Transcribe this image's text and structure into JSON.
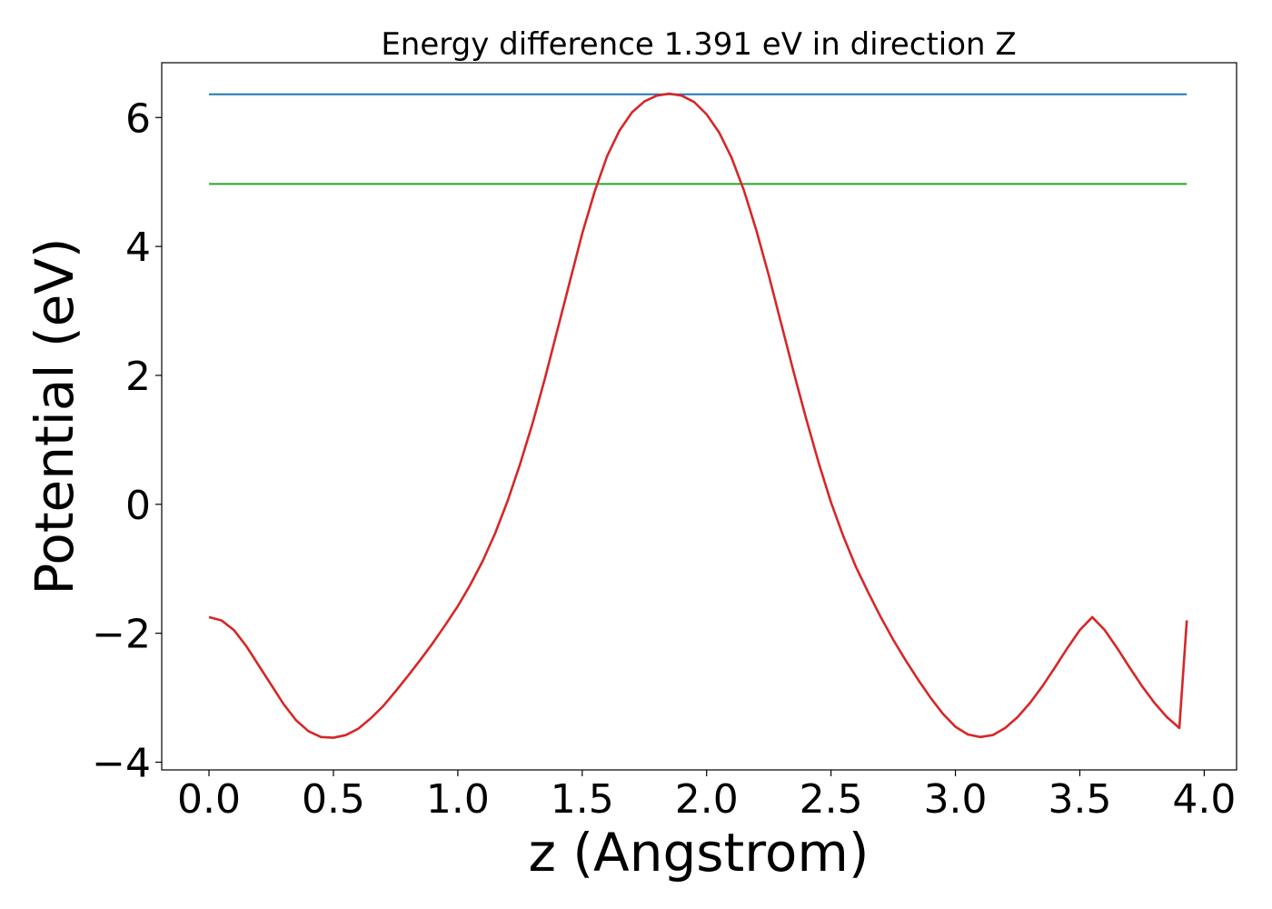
{
  "chart_data": {
    "type": "line",
    "title": "Energy difference 1.391 eV in direction Z",
    "xlabel": "z (Angstrom)",
    "ylabel": "Potential (eV)",
    "xlim": [
      -0.19,
      4.13
    ],
    "ylim": [
      -4.12,
      6.85
    ],
    "x_ticks": [
      0.0,
      0.5,
      1.0,
      1.5,
      2.0,
      2.5,
      3.0,
      3.5,
      4.0
    ],
    "x_tick_labels": [
      "0.0",
      "0.5",
      "1.0",
      "1.5",
      "2.0",
      "2.5",
      "3.0",
      "3.5",
      "4.0"
    ],
    "y_ticks": [
      -4,
      -2,
      0,
      2,
      4,
      6
    ],
    "y_tick_labels": [
      "−4",
      "−2",
      "0",
      "2",
      "4",
      "6"
    ],
    "grid": false,
    "series": [
      {
        "color": "#1f77b4",
        "x": [
          0.0,
          3.93
        ],
        "y": [
          6.36,
          6.36
        ]
      },
      {
        "color": "#2ca02c",
        "x": [
          0.0,
          3.93
        ],
        "y": [
          4.97,
          4.97
        ]
      },
      {
        "color": "#d62728",
        "x": [
          0.0,
          0.05,
          0.1,
          0.15,
          0.2,
          0.25,
          0.3,
          0.35,
          0.4,
          0.45,
          0.5,
          0.55,
          0.6,
          0.65,
          0.7,
          0.75,
          0.8,
          0.85,
          0.9,
          0.95,
          1.0,
          1.05,
          1.1,
          1.15,
          1.2,
          1.25,
          1.3,
          1.35,
          1.4,
          1.45,
          1.5,
          1.55,
          1.6,
          1.65,
          1.7,
          1.75,
          1.8,
          1.85,
          1.9,
          1.95,
          2.0,
          2.05,
          2.1,
          2.15,
          2.2,
          2.25,
          2.3,
          2.35,
          2.4,
          2.45,
          2.5,
          2.55,
          2.6,
          2.65,
          2.7,
          2.75,
          2.8,
          2.85,
          2.9,
          2.95,
          3.0,
          3.05,
          3.1,
          3.15,
          3.2,
          3.25,
          3.3,
          3.35,
          3.4,
          3.45,
          3.5,
          3.55,
          3.6,
          3.65,
          3.7,
          3.75,
          3.8,
          3.85,
          3.9,
          3.93
        ],
        "y": [
          -1.75,
          -1.8,
          -1.95,
          -2.2,
          -2.5,
          -2.8,
          -3.1,
          -3.35,
          -3.52,
          -3.61,
          -3.62,
          -3.58,
          -3.48,
          -3.32,
          -3.13,
          -2.9,
          -2.66,
          -2.41,
          -2.15,
          -1.87,
          -1.58,
          -1.25,
          -0.88,
          -0.45,
          0.05,
          0.62,
          1.25,
          1.95,
          2.7,
          3.45,
          4.2,
          4.85,
          5.4,
          5.8,
          6.08,
          6.25,
          6.34,
          6.37,
          6.34,
          6.24,
          6.05,
          5.77,
          5.38,
          4.87,
          4.25,
          3.55,
          2.8,
          2.05,
          1.33,
          0.65,
          0.03,
          -0.5,
          -0.97,
          -1.37,
          -1.75,
          -2.1,
          -2.42,
          -2.72,
          -3.0,
          -3.25,
          -3.45,
          -3.57,
          -3.61,
          -3.58,
          -3.47,
          -3.3,
          -3.08,
          -2.82,
          -2.53,
          -2.23,
          -1.95,
          -1.75,
          -1.95,
          -2.23,
          -2.53,
          -2.82,
          -3.08,
          -3.3,
          -3.47,
          -1.8
        ]
      }
    ]
  }
}
